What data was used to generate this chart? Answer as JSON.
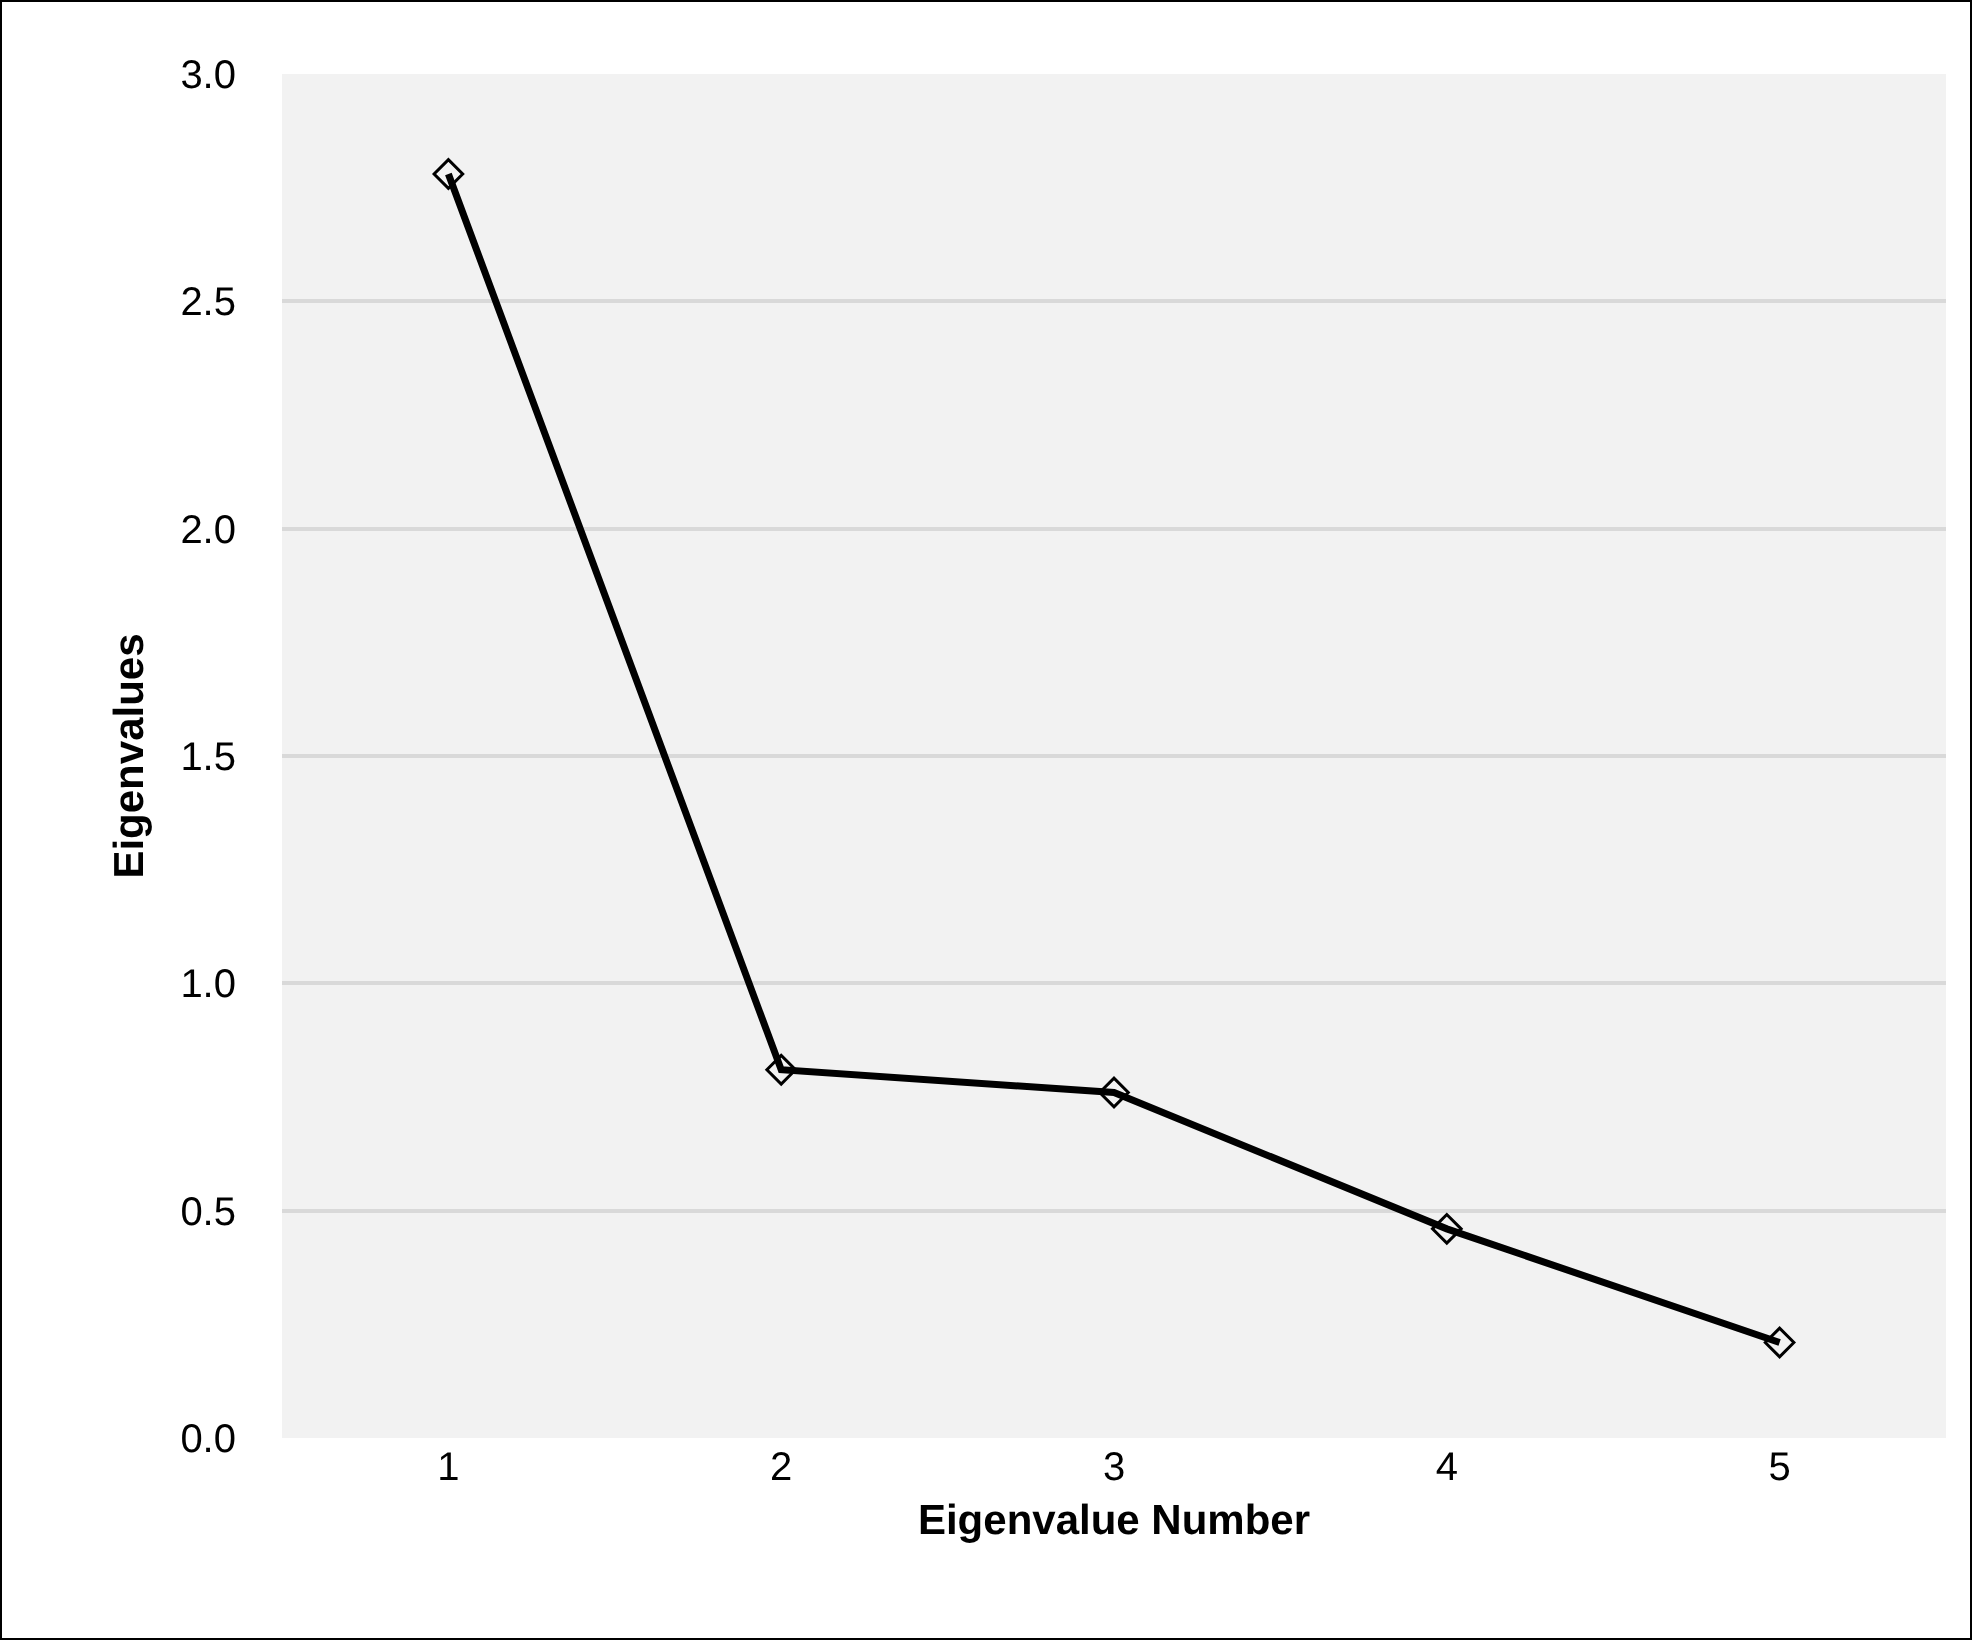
{
  "chart_data": {
    "type": "line",
    "xlabel": "Eigenvalue Number",
    "ylabel": "Eigenvalues",
    "categories": [
      "1",
      "2",
      "3",
      "4",
      "5"
    ],
    "series": [
      {
        "color": "#000000",
        "values": [
          2.78,
          0.81,
          0.76,
          0.46,
          0.21
        ]
      }
    ],
    "ylim": [
      0,
      3
    ],
    "yticks": [
      {
        "value": 0,
        "label": "0.0"
      },
      {
        "value": 0.5,
        "label": "0.5"
      },
      {
        "value": 1,
        "label": "1.0"
      },
      {
        "value": 1.5,
        "label": "1.5"
      },
      {
        "value": 2,
        "label": "2.0"
      },
      {
        "value": 2.5,
        "label": "2.5"
      },
      {
        "value": 3,
        "label": "3.0"
      }
    ],
    "grid": "y",
    "marker": "diamond",
    "line_style": "solid"
  }
}
